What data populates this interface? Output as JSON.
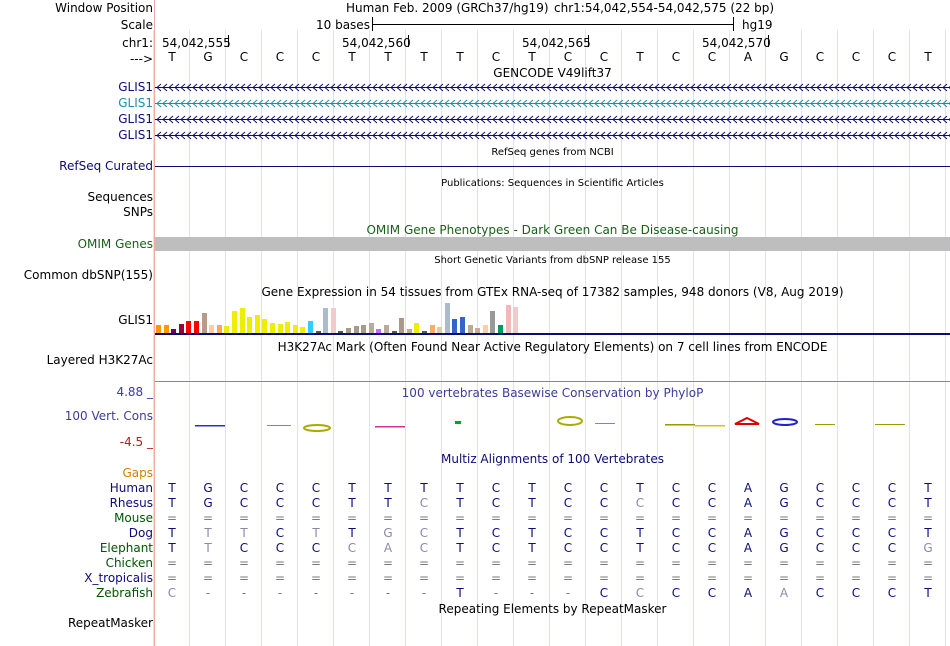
{
  "header": {
    "window_position_label": "Window Position",
    "scale_label": "Scale",
    "chr_label": "chr1:",
    "strand_label": "--->",
    "assembly": "Human Feb. 2009 (GRCh37/hg19)",
    "position": "chr1:54,042,554-54,042,575 (22 bp)",
    "scale_text": "10 bases",
    "db": "hg19",
    "coords": [
      "54,042,555",
      "54,042,560",
      "54,042,565",
      "54,042,570"
    ],
    "bases": [
      "T",
      "G",
      "C",
      "C",
      "C",
      "T",
      "T",
      "T",
      "T",
      "C",
      "T",
      "C",
      "C",
      "T",
      "C",
      "C",
      "A",
      "G",
      "C",
      "C",
      "C",
      "T"
    ]
  },
  "gencode": {
    "title": "GENCODE V49lift37",
    "genes": [
      {
        "label": "GLIS1",
        "color": "#0c0c78"
      },
      {
        "label": "GLIS1",
        "color": "#1c8eaa"
      },
      {
        "label": "GLIS1",
        "color": "#0c0c78"
      },
      {
        "label": "GLIS1",
        "color": "#0c0c78"
      }
    ]
  },
  "refseq": {
    "title": "RefSeq genes from NCBI",
    "label": "RefSeq Curated"
  },
  "publications": {
    "title": "Publications: Sequences in Scientific Articles",
    "label1": "Sequences",
    "label2": "SNPs"
  },
  "omim": {
    "title": "OMIM Gene Phenotypes - Dark Green Can Be Disease-causing",
    "label": "OMIM Genes"
  },
  "dbsnp": {
    "title": "Short Genetic Variants from dbSNP release 155",
    "label": "Common dbSNP(155)"
  },
  "gtex": {
    "title": "Gene Expression in 54 tissues from GTEx RNA-seq of 17382 samples, 948 donors (V8, Aug 2019)",
    "label": "GLIS1",
    "bars": [
      {
        "h": 8,
        "c": "#ff9900"
      },
      {
        "h": 8,
        "c": "#ff9900"
      },
      {
        "h": 4,
        "c": "#660066"
      },
      {
        "h": 9,
        "c": "#990033"
      },
      {
        "h": 12,
        "c": "#ff0000"
      },
      {
        "h": 12,
        "c": "#ff0000"
      },
      {
        "h": 20,
        "c": "#bb9988"
      },
      {
        "h": 8,
        "c": "#ffccaa"
      },
      {
        "h": 8,
        "c": "#ffaa44"
      },
      {
        "h": 7,
        "c": "#eeee00"
      },
      {
        "h": 22,
        "c": "#eeee00"
      },
      {
        "h": 25,
        "c": "#eeee00"
      },
      {
        "h": 16,
        "c": "#eeee00"
      },
      {
        "h": 18,
        "c": "#eeee00"
      },
      {
        "h": 14,
        "c": "#eeee00"
      },
      {
        "h": 10,
        "c": "#eeee00"
      },
      {
        "h": 9,
        "c": "#eeee00"
      },
      {
        "h": 11,
        "c": "#eeee00"
      },
      {
        "h": 8,
        "c": "#eeee00"
      },
      {
        "h": 6,
        "c": "#eeee00"
      },
      {
        "h": 12,
        "c": "#33ccff"
      },
      {
        "h": 2,
        "c": "#555555"
      },
      {
        "h": 25,
        "c": "#aabbcc"
      },
      {
        "h": 25,
        "c": "#eecccc"
      },
      {
        "h": 2,
        "c": "#555555"
      },
      {
        "h": 5,
        "c": "#aa9988"
      },
      {
        "h": 7,
        "c": "#aa9988"
      },
      {
        "h": 8,
        "c": "#aa9988"
      },
      {
        "h": 10,
        "c": "#bbaa99"
      },
      {
        "h": 4,
        "c": "#cc66ff"
      },
      {
        "h": 8,
        "c": "#bbaa99"
      },
      {
        "h": 2,
        "c": "#555555"
      },
      {
        "h": 15,
        "c": "#aa9988"
      },
      {
        "h": 4,
        "c": "#ccaa88"
      },
      {
        "h": 10,
        "c": "#eeee00"
      },
      {
        "h": 2,
        "c": "#555555"
      },
      {
        "h": 8,
        "c": "#ffaa66"
      },
      {
        "h": 6,
        "c": "#ddccaa"
      },
      {
        "h": 30,
        "c": "#aabbcc"
      },
      {
        "h": 14,
        "c": "#3366cc"
      },
      {
        "h": 16,
        "c": "#3366cc"
      },
      {
        "h": 8,
        "c": "#bbaa99"
      },
      {
        "h": 5,
        "c": "#ccaa99"
      },
      {
        "h": 8,
        "c": "#ffccaa"
      },
      {
        "h": 22,
        "c": "#999999"
      },
      {
        "h": 8,
        "c": "#009966"
      },
      {
        "h": 28,
        "c": "#eebbbb"
      },
      {
        "h": 26,
        "c": "#eecccc"
      }
    ]
  },
  "h3k27ac": {
    "title": "H3K27Ac Mark (Often Found Near Active Regulatory Elements) on 7 cell lines from ENCODE",
    "label": "Layered H3K27Ac"
  },
  "phylop": {
    "title": "100 vertebrates Basewise Conservation by PhyloP",
    "label": "100 Vert. Cons",
    "max": "4.88 _",
    "min": "-4.5 _"
  },
  "multiz": {
    "title": "Multiz Alignments of 100 Vertebrates",
    "gaps_label": "Gaps",
    "species": [
      {
        "name": "Human",
        "color": "#0c0c78",
        "seq": [
          "T",
          "G",
          "C",
          "C",
          "C",
          "T",
          "T",
          "T",
          "T",
          "C",
          "T",
          "C",
          "C",
          "T",
          "C",
          "C",
          "A",
          "G",
          "C",
          "C",
          "C",
          "T"
        ]
      },
      {
        "name": "Rhesus",
        "color": "#0c0c78",
        "seq": [
          "T",
          "G",
          "C",
          "C",
          "C",
          "T",
          "T",
          "C",
          "T",
          "C",
          "T",
          "C",
          "C",
          "C",
          "C",
          "C",
          "A",
          "G",
          "C",
          "C",
          "C",
          "T"
        ]
      },
      {
        "name": "Mouse",
        "color": "#005500",
        "seq": [
          "=",
          "=",
          "=",
          "=",
          "=",
          "=",
          "=",
          "=",
          "=",
          "=",
          "=",
          "=",
          "=",
          "=",
          "=",
          "=",
          "=",
          "=",
          "=",
          "=",
          "=",
          "="
        ]
      },
      {
        "name": "Dog",
        "color": "#0c0c78",
        "seq": [
          "T",
          "T",
          "T",
          "C",
          "T",
          "T",
          "G",
          "C",
          "T",
          "C",
          "T",
          "C",
          "C",
          "T",
          "C",
          "C",
          "A",
          "G",
          "C",
          "C",
          "C",
          "T"
        ]
      },
      {
        "name": "Elephant",
        "color": "#005500",
        "seq": [
          "T",
          "T",
          "C",
          "C",
          "C",
          "C",
          "A",
          "C",
          "T",
          "C",
          "T",
          "C",
          "C",
          "T",
          "C",
          "C",
          "A",
          "G",
          "C",
          "C",
          "C",
          "G"
        ]
      },
      {
        "name": "Chicken",
        "color": "#005500",
        "seq": [
          "=",
          "=",
          "=",
          "=",
          "=",
          "=",
          "=",
          "=",
          "=",
          "=",
          "=",
          "=",
          "=",
          "=",
          "=",
          "=",
          "=",
          "=",
          "=",
          "=",
          "=",
          "="
        ]
      },
      {
        "name": "X_tropicalis",
        "color": "#0c0c78",
        "seq": [
          "=",
          "=",
          "=",
          "=",
          "=",
          "=",
          "=",
          "=",
          "=",
          "=",
          "=",
          "=",
          "=",
          "=",
          "=",
          "=",
          "=",
          "=",
          "=",
          "=",
          "=",
          "="
        ]
      },
      {
        "name": "Zebrafish",
        "color": "#005500",
        "seq": [
          "C",
          "-",
          "-",
          "-",
          "-",
          "-",
          "-",
          "-",
          "T",
          "-",
          "-",
          "-",
          "C",
          "C",
          "C",
          "C",
          "A",
          "A",
          "C",
          "C",
          "C",
          "T"
        ]
      }
    ]
  },
  "repeatmasker": {
    "title": "Repeating Elements by RepeatMasker",
    "label": "RepeatMasker"
  }
}
